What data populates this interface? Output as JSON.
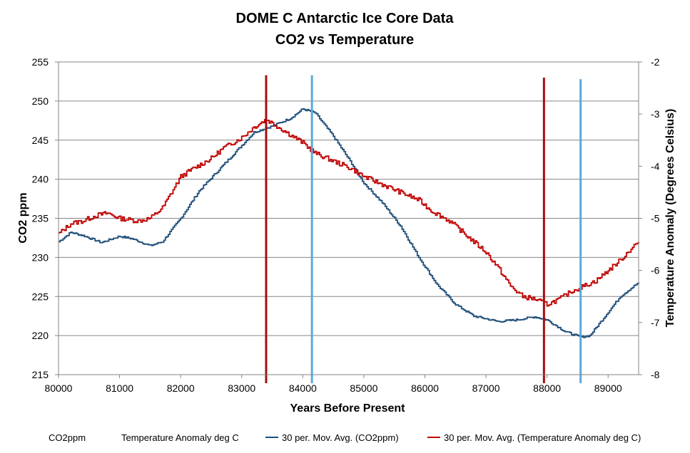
{
  "chart_data": {
    "type": "line",
    "title": "DOME C Antarctic Ice Core Data",
    "subtitle": "CO2 vs Temperature",
    "xlabel": "Years Before Present",
    "ylabel": "CO2 ppm",
    "y2label": "Temperature Anomaly (Degrees Celsius)",
    "xlim": [
      80000,
      89500
    ],
    "ylim": [
      215,
      255
    ],
    "y2lim": [
      -8,
      -2
    ],
    "x_ticks": [
      80000,
      81000,
      82000,
      83000,
      84000,
      85000,
      86000,
      87000,
      88000,
      89000
    ],
    "y_ticks": [
      215,
      220,
      225,
      230,
      235,
      240,
      245,
      250,
      255
    ],
    "y2_ticks": [
      -8,
      -7,
      -6,
      -5,
      -4,
      -3,
      -2
    ],
    "grid": "horizontal",
    "legend_position": "bottom",
    "legend": [
      "CO2ppm",
      "Temperature Anomaly deg C",
      "30 per. Mov. Avg. (CO2ppm)",
      "30 per. Mov. Avg. (Temperature Anomaly deg C)"
    ],
    "colors": {
      "co2": "#1f4e79",
      "temperature": "#c00000",
      "temp_marker": "#a50f0f",
      "co2_marker": "#5aaad8",
      "grid": "#868686"
    },
    "series": [
      {
        "name": "30 per. Mov. Avg. (CO2ppm)",
        "axis": "left",
        "x": [
          80000,
          80200,
          80400,
          80700,
          81000,
          81200,
          81500,
          81700,
          82000,
          82300,
          82600,
          82900,
          83200,
          83500,
          83800,
          84000,
          84200,
          84500,
          84800,
          85000,
          85300,
          85600,
          85900,
          86200,
          86500,
          86800,
          87200,
          87500,
          87800,
          88000,
          88300,
          88550,
          88700,
          88900,
          89200,
          89500
        ],
        "values": [
          232.0,
          233.2,
          232.8,
          231.9,
          232.7,
          232.4,
          231.5,
          232.0,
          235.0,
          238.5,
          241.0,
          243.5,
          246.0,
          246.8,
          247.8,
          249.0,
          248.5,
          245.5,
          242.0,
          239.5,
          237.0,
          234.0,
          230.0,
          226.5,
          224.0,
          222.5,
          221.8,
          222.0,
          222.4,
          222.0,
          220.5,
          219.8,
          220.0,
          222.0,
          225.0,
          226.8
        ]
      },
      {
        "name": "30 per. Mov. Avg. (Temperature Anomaly deg C)",
        "axis": "right",
        "x": [
          80000,
          80200,
          80400,
          80600,
          80800,
          81000,
          81300,
          81500,
          81700,
          81850,
          82000,
          82200,
          82500,
          82700,
          83000,
          83200,
          83400,
          83600,
          83800,
          84000,
          84200,
          84400,
          84600,
          84800,
          85000,
          85300,
          85600,
          85900,
          86100,
          86400,
          86700,
          87000,
          87200,
          87400,
          87600,
          87800,
          88000,
          88200,
          88400,
          88600,
          88800,
          89000,
          89200,
          89400,
          89500
        ],
        "values": [
          -5.3,
          -5.1,
          -5.05,
          -4.95,
          -4.9,
          -5.0,
          -5.05,
          -5.0,
          -4.8,
          -4.5,
          -4.2,
          -4.05,
          -3.85,
          -3.65,
          -3.45,
          -3.25,
          -3.1,
          -3.25,
          -3.4,
          -3.55,
          -3.75,
          -3.85,
          -3.95,
          -4.05,
          -4.2,
          -4.35,
          -4.5,
          -4.65,
          -4.85,
          -5.05,
          -5.35,
          -5.65,
          -5.95,
          -6.3,
          -6.5,
          -6.55,
          -6.65,
          -6.55,
          -6.4,
          -6.3,
          -6.2,
          -6.0,
          -5.8,
          -5.55,
          -5.45
        ]
      }
    ],
    "vertical_markers": [
      {
        "x": 83400,
        "y_top": 253.3,
        "color": "temp_marker"
      },
      {
        "x": 84150,
        "y_top": 253.3,
        "color": "co2_marker"
      },
      {
        "x": 87950,
        "y_top": 253.0,
        "color": "temp_marker"
      },
      {
        "x": 88550,
        "y_top": 252.8,
        "color": "co2_marker"
      }
    ]
  }
}
